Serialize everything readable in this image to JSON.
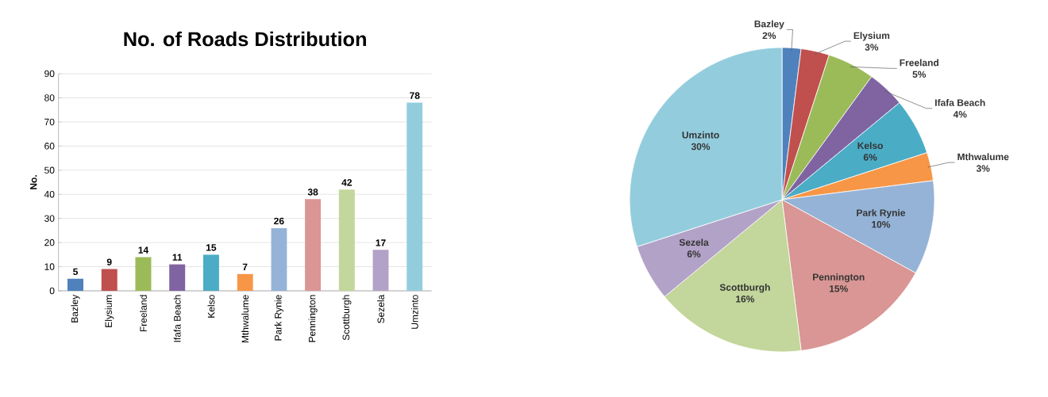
{
  "chart_data": [
    {
      "type": "bar",
      "title": "No. of Roads Distribution",
      "ylabel": "No.",
      "categories": [
        "Bazley",
        "Elysium",
        "Freeland",
        "Ifafa Beach",
        "Kelso",
        "Mthwalume",
        "Park Rynie",
        "Pennington",
        "Scottburgh",
        "Sezela",
        "Umzinto"
      ],
      "values": [
        5,
        9,
        14,
        11,
        15,
        7,
        26,
        38,
        42,
        17,
        78
      ],
      "colors": [
        "#4f81bd",
        "#c0504d",
        "#9bbb59",
        "#8064a2",
        "#4bacc6",
        "#f79646",
        "#95b3d7",
        "#d99694",
        "#c3d69b",
        "#b3a2c7",
        "#93cddd"
      ],
      "ylim": [
        0,
        90
      ],
      "yticks": [
        0,
        10,
        20,
        30,
        40,
        50,
        60,
        70,
        80,
        90
      ],
      "grid": "y",
      "data_labels": true
    },
    {
      "type": "pie",
      "categories": [
        "Bazley",
        "Elysium",
        "Freeland",
        "Ifafa Beach",
        "Kelso",
        "Mthwalume",
        "Park Rynie",
        "Pennington",
        "Scottburgh",
        "Sezela",
        "Umzinto"
      ],
      "values": [
        2,
        3,
        5,
        4,
        6,
        3,
        10,
        15,
        16,
        6,
        30
      ],
      "value_labels": [
        "2%",
        "3%",
        "5%",
        "4%",
        "6%",
        "3%",
        "10%",
        "15%",
        "16%",
        "6%",
        "30%"
      ],
      "colors": [
        "#4f81bd",
        "#c0504d",
        "#9bbb59",
        "#8064a2",
        "#4bacc6",
        "#f79646",
        "#95b3d7",
        "#d99694",
        "#c3d69b",
        "#b3a2c7",
        "#93cddd"
      ]
    }
  ]
}
